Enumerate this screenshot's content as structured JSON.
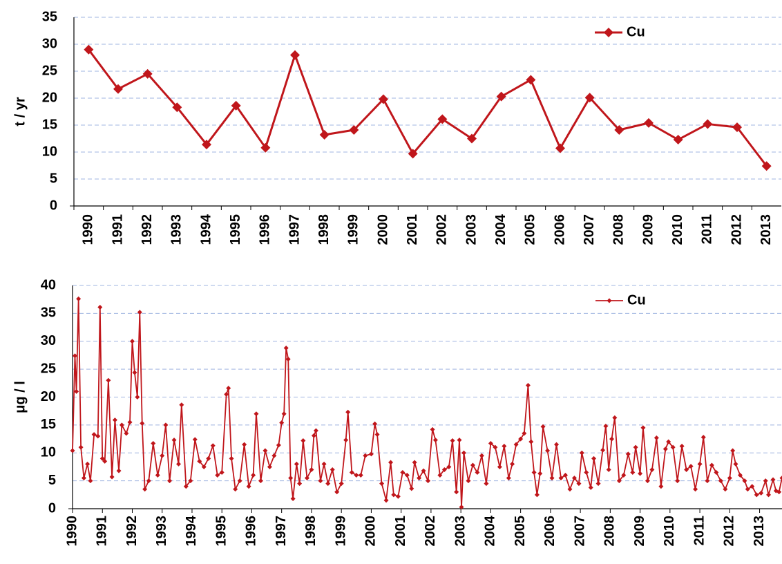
{
  "chart_data": [
    {
      "type": "line",
      "ylabel": "t / yr",
      "categories": [
        "1990",
        "1991",
        "1992",
        "1993",
        "1994",
        "1995",
        "1996",
        "1997",
        "1998",
        "1999",
        "2000",
        "2001",
        "2002",
        "2003",
        "2004",
        "2005",
        "2006",
        "2007",
        "2008",
        "2009",
        "2010",
        "2011",
        "2012",
        "2013"
      ],
      "series": [
        {
          "name": "Cu",
          "color": "#c0161b",
          "values": [
            29,
            21.7,
            24.5,
            18.3,
            11.4,
            18.6,
            10.8,
            28,
            13.2,
            14.1,
            19.8,
            9.7,
            16.1,
            12.5,
            20.3,
            23.4,
            10.7,
            20.1,
            14.1,
            15.4,
            12.3,
            15.2,
            14.6,
            7.4
          ]
        }
      ],
      "ylim": [
        0,
        35
      ],
      "yticks": [
        0,
        5,
        10,
        15,
        20,
        25,
        30,
        35
      ],
      "grid": true,
      "legend": "upper right"
    },
    {
      "type": "line",
      "ylabel": "μg / l",
      "x": [
        1990.0,
        1990.08,
        1990.13,
        1990.2,
        1990.28,
        1990.38,
        1990.5,
        1990.6,
        1990.72,
        1990.85,
        1990.92,
        1991.0,
        1991.08,
        1991.2,
        1991.32,
        1991.42,
        1991.55,
        1991.65,
        1991.8,
        1991.92,
        1992.0,
        1992.08,
        1992.17,
        1992.25,
        1992.33,
        1992.42,
        1992.55,
        1992.7,
        1992.85,
        1993.0,
        1993.12,
        1993.25,
        1993.4,
        1993.55,
        1993.65,
        1993.8,
        1993.95,
        1994.1,
        1994.25,
        1994.4,
        1994.55,
        1994.7,
        1994.85,
        1995.0,
        1995.15,
        1995.22,
        1995.32,
        1995.45,
        1995.6,
        1995.75,
        1995.9,
        1996.05,
        1996.15,
        1996.3,
        1996.45,
        1996.6,
        1996.75,
        1996.9,
        1997.0,
        1997.08,
        1997.15,
        1997.22,
        1997.3,
        1997.38,
        1997.5,
        1997.6,
        1997.72,
        1997.85,
        1998.0,
        1998.08,
        1998.15,
        1998.3,
        1998.42,
        1998.55,
        1998.7,
        1998.85,
        1999.0,
        1999.15,
        1999.22,
        1999.35,
        1999.5,
        1999.65,
        1999.8,
        2000.0,
        2000.12,
        2000.2,
        2000.35,
        2000.5,
        2000.65,
        2000.75,
        2000.9,
        2001.05,
        2001.2,
        2001.35,
        2001.45,
        2001.6,
        2001.75,
        2001.9,
        2002.05,
        2002.15,
        2002.3,
        2002.45,
        2002.6,
        2002.72,
        2002.85,
        2002.95,
        2003.02,
        2003.1,
        2003.25,
        2003.4,
        2003.55,
        2003.7,
        2003.85,
        2004.0,
        2004.15,
        2004.3,
        2004.45,
        2004.6,
        2004.72,
        2004.85,
        2005.0,
        2005.12,
        2005.25,
        2005.35,
        2005.45,
        2005.55,
        2005.65,
        2005.75,
        2005.9,
        2006.05,
        2006.2,
        2006.35,
        2006.5,
        2006.65,
        2006.8,
        2006.95,
        2007.05,
        2007.2,
        2007.35,
        2007.45,
        2007.6,
        2007.75,
        2007.85,
        2007.95,
        2008.05,
        2008.15,
        2008.3,
        2008.45,
        2008.6,
        2008.75,
        2008.85,
        2009.0,
        2009.1,
        2009.25,
        2009.4,
        2009.55,
        2009.7,
        2009.85,
        2009.95,
        2010.1,
        2010.25,
        2010.4,
        2010.55,
        2010.7,
        2010.85,
        2011.0,
        2011.12,
        2011.25,
        2011.4,
        2011.55,
        2011.7,
        2011.85,
        2012.0,
        2012.1,
        2012.2,
        2012.35,
        2012.5,
        2012.6,
        2012.75,
        2012.9,
        2013.05,
        2013.2,
        2013.3,
        2013.45,
        2013.55,
        2013.65,
        2013.75
      ],
      "series": [
        {
          "name": "Cu",
          "color": "#c0161b",
          "values": [
            10.4,
            27.4,
            21,
            37.6,
            11,
            5.5,
            8,
            5,
            13.3,
            13,
            36.1,
            9,
            8.5,
            23,
            5.7,
            15.9,
            6.8,
            15,
            13.5,
            15.5,
            30,
            24.4,
            20,
            35.2,
            15.3,
            3.5,
            5,
            11.7,
            6,
            9.5,
            15,
            5,
            12.3,
            8,
            18.6,
            4,
            5,
            12.4,
            8.5,
            7.5,
            9,
            11.3,
            6,
            6.5,
            20.5,
            21.6,
            9,
            3.5,
            5,
            11.5,
            4,
            6,
            17,
            5,
            10.4,
            7.5,
            9.5,
            11.4,
            15.4,
            17,
            28.8,
            26.8,
            5.5,
            1.8,
            8,
            4.5,
            12.2,
            5.5,
            7,
            13.1,
            14,
            5,
            8,
            4.5,
            7,
            3,
            4.5,
            12.3,
            17.3,
            6.5,
            6,
            6,
            9.5,
            9.8,
            15.2,
            13.3,
            4.5,
            1.5,
            8.3,
            2.5,
            2.2,
            6.5,
            6,
            3.6,
            8.3,
            5.5,
            6.8,
            5,
            14.2,
            12.3,
            6,
            7,
            7.5,
            12.2,
            3,
            12.3,
            0.3,
            10,
            5,
            7.8,
            6.5,
            9.5,
            4.5,
            11.7,
            11,
            7.5,
            11.2,
            5.5,
            8,
            11.5,
            12.5,
            13.5,
            22.1,
            12,
            6.5,
            2.5,
            6.3,
            14.7,
            10.4,
            5.5,
            11.5,
            5.5,
            6,
            3.5,
            5.5,
            4.5,
            10,
            6.5,
            3.8,
            9,
            4.5,
            10.5,
            14.8,
            7,
            12.5,
            16.3,
            5,
            6,
            9.8,
            6.5,
            11,
            6.3,
            14.5,
            5,
            7,
            12.7,
            4,
            10.7,
            12,
            11,
            5,
            11.2,
            7,
            7.6,
            3.5,
            8,
            12.8,
            5,
            7.8,
            6.5,
            5,
            3.5,
            5.5,
            10.4,
            8,
            6,
            5,
            3.5,
            4,
            2.5,
            2.8,
            5,
            2.5,
            5.2,
            3.2,
            3,
            5.5
          ]
        }
      ],
      "xlim": [
        1990,
        2013.75
      ],
      "xticks": [
        1990,
        1991,
        1992,
        1993,
        1994,
        1995,
        1996,
        1997,
        1998,
        1999,
        2000,
        2001,
        2002,
        2003,
        2004,
        2005,
        2006,
        2007,
        2008,
        2009,
        2010,
        2011,
        2012,
        2013
      ],
      "ylim": [
        0,
        40
      ],
      "yticks": [
        0,
        5,
        10,
        15,
        20,
        25,
        30,
        35,
        40
      ],
      "grid": true,
      "legend": "upper right"
    }
  ]
}
